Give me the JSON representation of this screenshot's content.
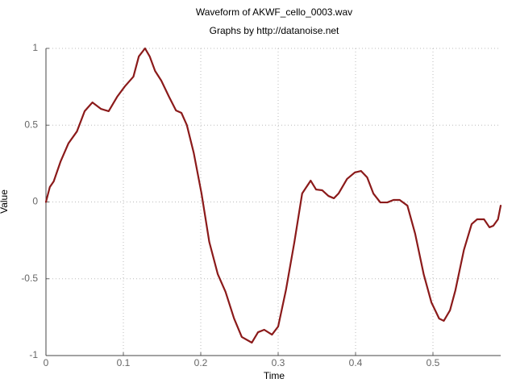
{
  "chart_data": {
    "type": "line",
    "title": "Waveform of AKWF_cello_0003.wav",
    "subtitle": "Graphs by http://datanoise.net",
    "x_label": "Time",
    "y_label": "Value",
    "color": "#8b1a1a",
    "grid": true,
    "xlim": [
      0,
      0.5875
    ],
    "ylim": [
      -1,
      1
    ],
    "xticks": [
      0,
      0.1,
      0.2,
      0.3,
      0.4,
      0.5
    ],
    "yticks": [
      -1,
      -0.5,
      0,
      0.5,
      1
    ],
    "x": [
      0,
      0.005,
      0.01,
      0.019,
      0.029,
      0.04,
      0.05,
      0.06,
      0.071,
      0.081,
      0.092,
      0.102,
      0.113,
      0.12,
      0.128,
      0.134,
      0.141,
      0.149,
      0.159,
      0.168,
      0.175,
      0.182,
      0.191,
      0.201,
      0.211,
      0.222,
      0.232,
      0.243,
      0.253,
      0.266,
      0.274,
      0.282,
      0.292,
      0.3,
      0.31,
      0.321,
      0.331,
      0.342,
      0.349,
      0.357,
      0.365,
      0.372,
      0.378,
      0.389,
      0.399,
      0.407,
      0.415,
      0.423,
      0.432,
      0.441,
      0.449,
      0.457,
      0.467,
      0.477,
      0.488,
      0.498,
      0.508,
      0.514,
      0.522,
      0.529,
      0.54,
      0.55,
      0.557,
      0.566,
      0.573,
      0.578,
      0.584,
      0.5875
    ],
    "values": [
      0,
      0.097,
      0.134,
      0.265,
      0.381,
      0.459,
      0.591,
      0.648,
      0.606,
      0.591,
      0.685,
      0.753,
      0.816,
      0.948,
      1.0,
      0.948,
      0.853,
      0.79,
      0.685,
      0.596,
      0.58,
      0.501,
      0.318,
      0.055,
      -0.26,
      -0.47,
      -0.585,
      -0.758,
      -0.879,
      -0.916,
      -0.848,
      -0.832,
      -0.864,
      -0.811,
      -0.575,
      -0.26,
      0.055,
      0.139,
      0.081,
      0.076,
      0.039,
      0.024,
      0.055,
      0.15,
      0.192,
      0.202,
      0.16,
      0.055,
      -0.003,
      -0.003,
      0.013,
      0.013,
      -0.024,
      -0.207,
      -0.47,
      -0.654,
      -0.759,
      -0.774,
      -0.706,
      -0.575,
      -0.312,
      -0.144,
      -0.113,
      -0.113,
      -0.165,
      -0.155,
      -0.113,
      -0.024
    ]
  }
}
